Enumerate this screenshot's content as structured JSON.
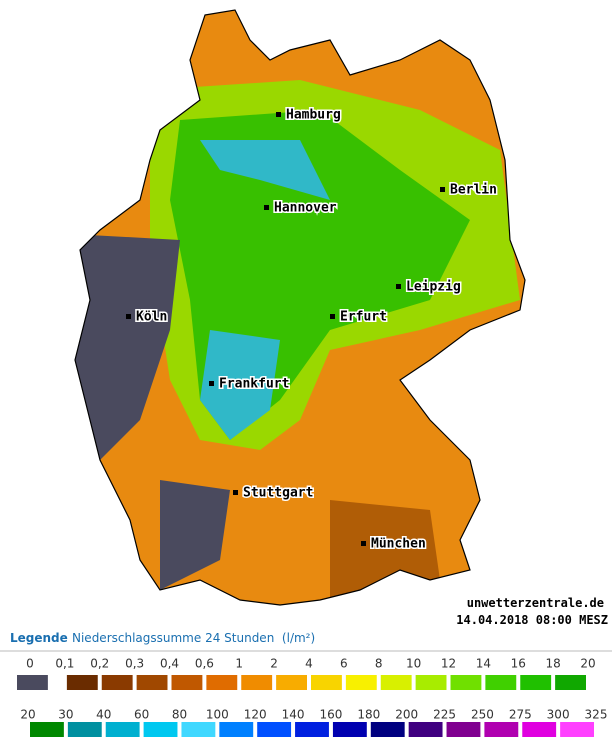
{
  "map": {
    "cities": [
      "Hamburg",
      "Berlin",
      "Hannover",
      "Leipzig",
      "Köln",
      "Erfurt",
      "Frankfurt",
      "Stuttgart",
      "München"
    ],
    "credit": "unwetterzentrale.de",
    "timestamp": "14.04.2018 08:00 MESZ"
  },
  "legend": {
    "title": "Legende",
    "subtitle": "Niederschlagssumme 24 Stunden  (l/m²)",
    "rows": [
      {
        "labels": [
          "0",
          "0,1",
          "0,2",
          "0,3",
          "0,4",
          "0,6",
          "1",
          "2",
          "4",
          "6",
          "8",
          "10",
          "12",
          "14",
          "16",
          "18",
          "20"
        ],
        "colors": [
          "#4a4a5e",
          "#6a2c00",
          "#8a3a00",
          "#a04800",
          "#c05800",
          "#e06c00",
          "#f08c00",
          "#f8ac00",
          "#f8d400",
          "#f8f000",
          "#d8f000",
          "#a8ec00",
          "#70e000",
          "#40d000",
          "#20c000",
          "#10a800"
        ]
      },
      {
        "labels": [
          "20",
          "30",
          "40",
          "60",
          "80",
          "100",
          "120",
          "140",
          "160",
          "180",
          "200",
          "225",
          "250",
          "275",
          "300",
          "325"
        ],
        "colors": [
          "#008800",
          "#0090a0",
          "#00b0d0",
          "#00c8f0",
          "#40d8ff",
          "#0080ff",
          "#0050ff",
          "#0020e0",
          "#0000b0",
          "#000080",
          "#400080",
          "#800090",
          "#b000b0",
          "#e000e0",
          "#ff40ff"
        ]
      }
    ]
  }
}
